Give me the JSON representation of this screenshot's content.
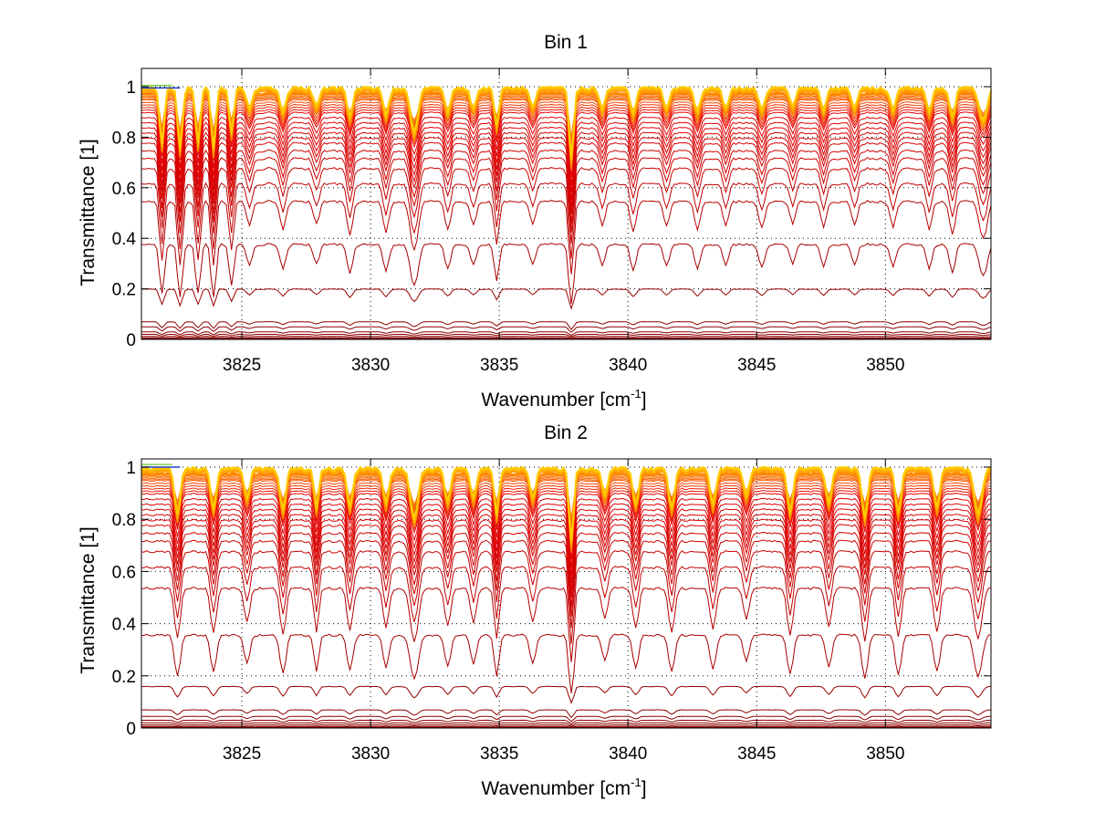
{
  "chart_data": [
    {
      "type": "line",
      "title": "Bin 1",
      "xlabel": "Wavenumber [cm^-1]",
      "xlabel_base": "Wavenumber [cm",
      "xlabel_sup": "-1",
      "xlabel_tail": "]",
      "ylabel": "Transmittance [1]",
      "xlim": [
        3821.1,
        3854.1
      ],
      "ylim": [
        0,
        1.05
      ],
      "xticks": [
        3825,
        3830,
        3835,
        3840,
        3845,
        3850
      ],
      "xtick_labels": [
        "3825",
        "3830",
        "3835",
        "3840",
        "3845",
        "3850"
      ],
      "yticks": [
        0,
        0.2,
        0.4,
        0.6,
        0.8,
        1
      ],
      "ytick_labels": [
        "0",
        "0.2",
        "0.4",
        "0.6",
        "0.8",
        "1"
      ],
      "grid": true,
      "series_description": "Family of ~40 transmittance spectra; baseline levels span ~0 to 1, colored from dark red (low transmittance) through red/orange to yellow/green/blue near 1",
      "series_baselines": [
        1.0,
        1.0,
        1.0,
        1.0,
        0.995,
        0.99,
        0.985,
        0.98,
        0.975,
        0.97,
        0.965,
        0.96,
        0.955,
        0.95,
        0.94,
        0.93,
        0.92,
        0.91,
        0.9,
        0.88,
        0.86,
        0.84,
        0.82,
        0.8,
        0.78,
        0.75,
        0.72,
        0.68,
        0.62,
        0.55,
        0.38,
        0.2,
        0.07,
        0.05,
        0.03,
        0.02,
        0.012,
        0.006,
        0.003,
        0.001
      ],
      "absorption_lines": [
        {
          "x": 3821.9,
          "depth": 0.45,
          "width": 0.12
        },
        {
          "x": 3822.6,
          "depth": 0.5,
          "width": 0.12
        },
        {
          "x": 3823.3,
          "depth": 0.45,
          "width": 0.12
        },
        {
          "x": 3823.9,
          "depth": 0.5,
          "width": 0.12
        },
        {
          "x": 3824.6,
          "depth": 0.35,
          "width": 0.12
        },
        {
          "x": 3825.3,
          "depth": 0.15,
          "width": 0.15
        },
        {
          "x": 3826.6,
          "depth": 0.18,
          "width": 0.15
        },
        {
          "x": 3827.9,
          "depth": 0.14,
          "width": 0.15
        },
        {
          "x": 3829.2,
          "depth": 0.22,
          "width": 0.15
        },
        {
          "x": 3830.6,
          "depth": 0.2,
          "width": 0.15
        },
        {
          "x": 3831.7,
          "depth": 0.35,
          "width": 0.2
        },
        {
          "x": 3833.0,
          "depth": 0.18,
          "width": 0.15
        },
        {
          "x": 3834.0,
          "depth": 0.15,
          "width": 0.15
        },
        {
          "x": 3834.9,
          "depth": 0.3,
          "width": 0.12
        },
        {
          "x": 3836.3,
          "depth": 0.15,
          "width": 0.15
        },
        {
          "x": 3837.8,
          "depth": 0.6,
          "width": 0.12
        },
        {
          "x": 3839.0,
          "depth": 0.15,
          "width": 0.15
        },
        {
          "x": 3840.2,
          "depth": 0.2,
          "width": 0.15
        },
        {
          "x": 3841.5,
          "depth": 0.16,
          "width": 0.15
        },
        {
          "x": 3842.7,
          "depth": 0.18,
          "width": 0.15
        },
        {
          "x": 3843.8,
          "depth": 0.15,
          "width": 0.15
        },
        {
          "x": 3845.2,
          "depth": 0.17,
          "width": 0.15
        },
        {
          "x": 3846.4,
          "depth": 0.14,
          "width": 0.15
        },
        {
          "x": 3847.6,
          "depth": 0.16,
          "width": 0.15
        },
        {
          "x": 3848.8,
          "depth": 0.15,
          "width": 0.15
        },
        {
          "x": 3850.3,
          "depth": 0.16,
          "width": 0.15
        },
        {
          "x": 3851.7,
          "depth": 0.18,
          "width": 0.15
        },
        {
          "x": 3852.6,
          "depth": 0.22,
          "width": 0.15
        },
        {
          "x": 3853.8,
          "depth": 0.25,
          "width": 0.2
        }
      ]
    },
    {
      "type": "line",
      "title": "Bin 2",
      "xlabel": "Wavenumber [cm^-1]",
      "xlabel_base": "Wavenumber [cm",
      "xlabel_sup": "-1",
      "xlabel_tail": "]",
      "ylabel": "Transmittance [1]",
      "xlim": [
        3821.1,
        3854.1
      ],
      "ylim": [
        0,
        1.05
      ],
      "xticks": [
        3825,
        3830,
        3835,
        3840,
        3845,
        3850
      ],
      "xtick_labels": [
        "3825",
        "3830",
        "3835",
        "3840",
        "3845",
        "3850"
      ],
      "yticks": [
        0,
        0.2,
        0.4,
        0.6,
        0.8,
        1
      ],
      "ytick_labels": [
        "0",
        "0.2",
        "0.4",
        "0.6",
        "0.8",
        "1"
      ],
      "grid": true,
      "series_description": "Family of ~40 transmittance spectra; baseline levels span ~0 to 1, colored from dark red (low transmittance) through red/orange to yellow/green near 1",
      "series_baselines": [
        1.0,
        1.0,
        1.0,
        0.998,
        0.995,
        0.99,
        0.985,
        0.98,
        0.975,
        0.97,
        0.965,
        0.96,
        0.955,
        0.95,
        0.94,
        0.93,
        0.92,
        0.91,
        0.9,
        0.88,
        0.86,
        0.84,
        0.82,
        0.8,
        0.78,
        0.75,
        0.72,
        0.68,
        0.62,
        0.54,
        0.36,
        0.16,
        0.07,
        0.045,
        0.03,
        0.02,
        0.012,
        0.006,
        0.003,
        0.001
      ],
      "absorption_lines": [
        {
          "x": 3822.5,
          "depth": 0.35,
          "width": 0.15
        },
        {
          "x": 3823.9,
          "depth": 0.3,
          "width": 0.15
        },
        {
          "x": 3825.2,
          "depth": 0.22,
          "width": 0.15
        },
        {
          "x": 3826.6,
          "depth": 0.32,
          "width": 0.15
        },
        {
          "x": 3827.9,
          "depth": 0.3,
          "width": 0.12
        },
        {
          "x": 3829.2,
          "depth": 0.28,
          "width": 0.15
        },
        {
          "x": 3830.6,
          "depth": 0.26,
          "width": 0.15
        },
        {
          "x": 3831.7,
          "depth": 0.38,
          "width": 0.2
        },
        {
          "x": 3833.0,
          "depth": 0.25,
          "width": 0.15
        },
        {
          "x": 3834.0,
          "depth": 0.22,
          "width": 0.15
        },
        {
          "x": 3834.9,
          "depth": 0.35,
          "width": 0.12
        },
        {
          "x": 3836.3,
          "depth": 0.22,
          "width": 0.15
        },
        {
          "x": 3837.8,
          "depth": 0.6,
          "width": 0.12
        },
        {
          "x": 3839.1,
          "depth": 0.2,
          "width": 0.15
        },
        {
          "x": 3840.3,
          "depth": 0.26,
          "width": 0.15
        },
        {
          "x": 3841.7,
          "depth": 0.3,
          "width": 0.15
        },
        {
          "x": 3843.3,
          "depth": 0.28,
          "width": 0.15
        },
        {
          "x": 3844.6,
          "depth": 0.2,
          "width": 0.15
        },
        {
          "x": 3846.3,
          "depth": 0.32,
          "width": 0.15
        },
        {
          "x": 3847.8,
          "depth": 0.25,
          "width": 0.15
        },
        {
          "x": 3849.2,
          "depth": 0.38,
          "width": 0.15
        },
        {
          "x": 3850.5,
          "depth": 0.33,
          "width": 0.15
        },
        {
          "x": 3852.0,
          "depth": 0.3,
          "width": 0.15
        },
        {
          "x": 3853.6,
          "depth": 0.35,
          "width": 0.2
        }
      ]
    }
  ],
  "colors": {
    "low": "#8b0000",
    "mid": "#e60000",
    "high": "#ff8c00",
    "top": "#ffcc00",
    "top_accent_green": "#7fd34e",
    "top_accent_blue": "#1f3fbf"
  }
}
